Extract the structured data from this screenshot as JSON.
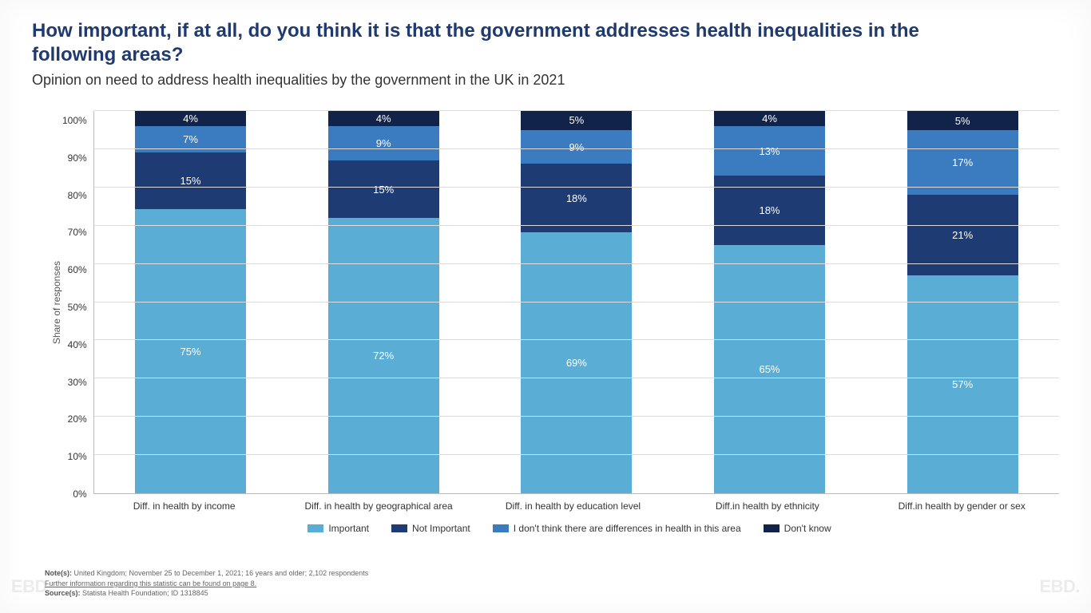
{
  "title": "How important, if at all, do you think it is that the government addresses health inequalities in the following areas?",
  "subtitle": "Opinion on need to address health inequalities by the government in the UK in 2021",
  "chart": {
    "type": "stacked-bar",
    "y_label": "Share of responses",
    "ylim": [
      0,
      100
    ],
    "ytick_step": 10,
    "y_ticks": [
      "0%",
      "10%",
      "20%",
      "30%",
      "40%",
      "50%",
      "60%",
      "70%",
      "80%",
      "90%",
      "100%"
    ],
    "grid_color": "#dddddd",
    "axis_color": "#bbbbbb",
    "background_color": "#ffffff",
    "bar_width_pct": 11.5,
    "label_fontsize": 12,
    "value_fontsize": 13,
    "categories": [
      "Diff. in health by income",
      "Diff. in health by geographical area",
      "Diff. in health by education level",
      "Diff.in health by ethnicity",
      "Diff.in health by gender or sex"
    ],
    "series": [
      {
        "name": "Important",
        "color": "#5aaed6"
      },
      {
        "name": "Not Important",
        "color": "#1e3b73"
      },
      {
        "name": "I don't think there are differences in health in this area",
        "color": "#3a7cbf"
      },
      {
        "name": "Don't know",
        "color": "#12234a"
      }
    ],
    "data": [
      [
        75,
        15,
        7,
        4
      ],
      [
        72,
        15,
        9,
        4
      ],
      [
        69,
        18,
        9,
        5
      ],
      [
        65,
        18,
        13,
        4
      ],
      [
        57,
        21,
        17,
        5
      ]
    ]
  },
  "notes": {
    "line1_label": "Note(s):",
    "line1_text": " United Kingdom; November 25 to December 1, 2021; 16 years and older; 2,102 respondents",
    "line2": "Further information regarding this statistic can be found on page 8.",
    "line3_label": "Source(s):",
    "line3_text": " Statista Health Foundation; ID 1318845"
  },
  "watermark": "EBD."
}
